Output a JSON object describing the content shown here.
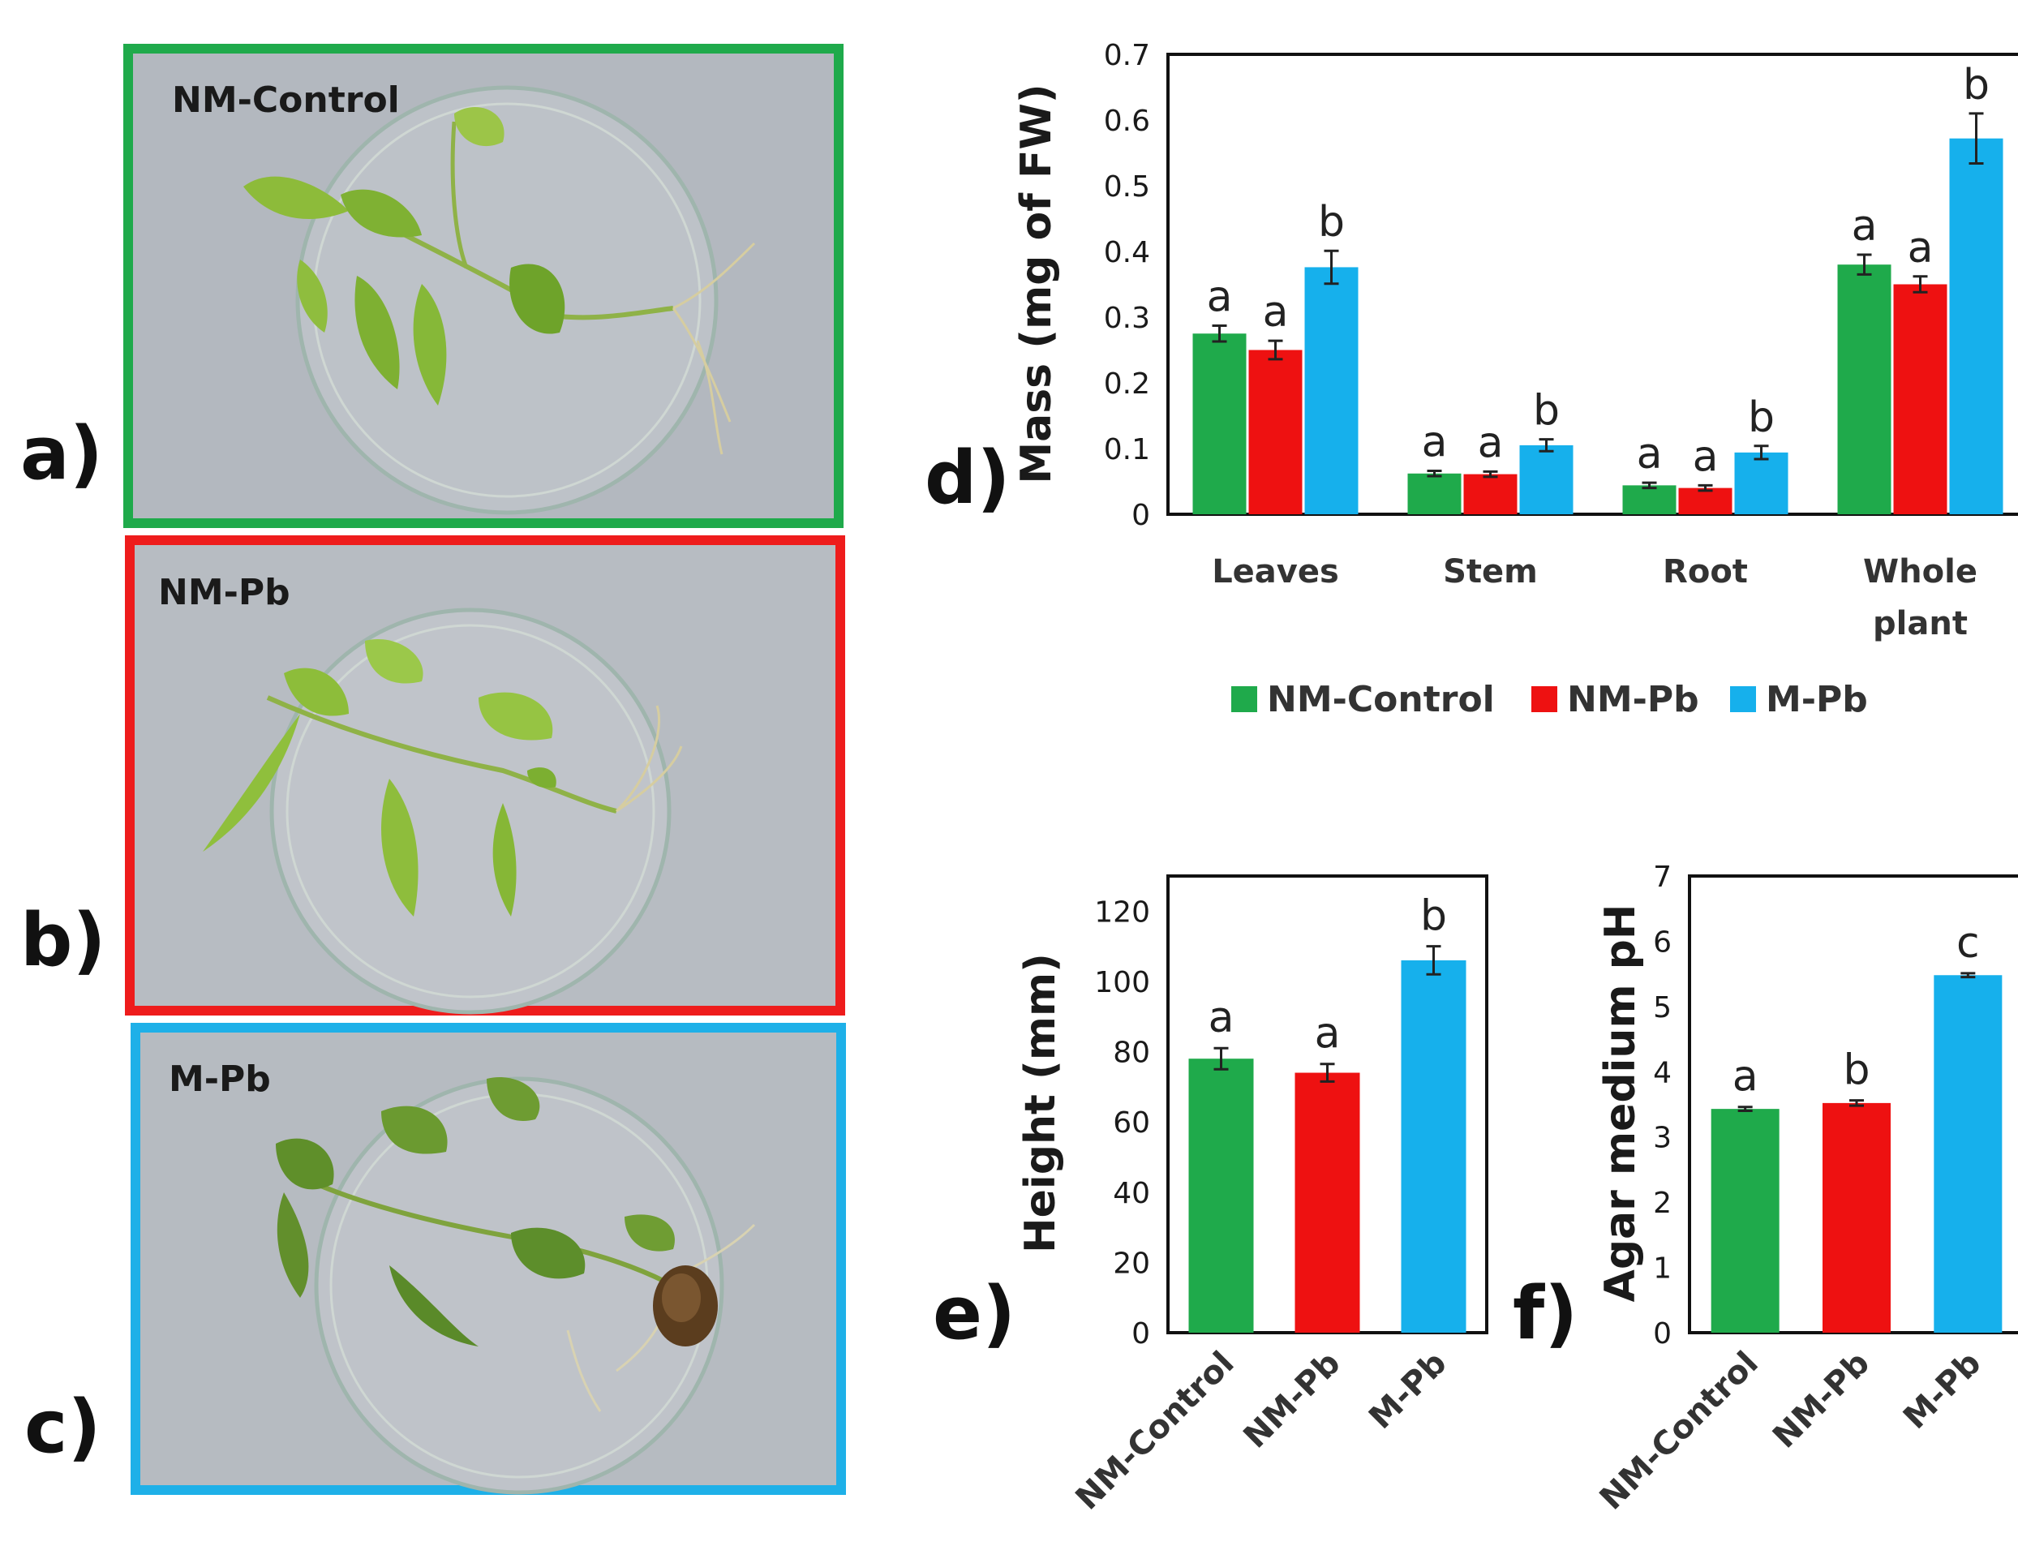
{
  "photos": [
    {
      "panel": "a)",
      "label": "NM-Control",
      "border_color": "#1faa4b"
    },
    {
      "panel": "b)",
      "label": "NM-Pb",
      "border_color": "#ee1c1c"
    },
    {
      "panel": "c)",
      "label": "M-Pb",
      "border_color": "#1eb0e8"
    }
  ],
  "colors": {
    "NM-Control": "#1faa4b",
    "NM-Pb": "#ee1111",
    "M-Pb": "#16b0ec"
  },
  "chart_data": [
    {
      "panel": "d)",
      "type": "bar",
      "ylabel": "Mass (mg of FW)",
      "ylim": [
        0,
        0.7
      ],
      "yticks": [
        "0",
        "0.1",
        "0.2",
        "0.3",
        "0.4",
        "0.5",
        "0.6",
        "0.7"
      ],
      "categories": [
        [
          "Leaves"
        ],
        [
          "Stem"
        ],
        [
          "Root"
        ],
        [
          "Whole",
          "plant"
        ]
      ],
      "series": [
        {
          "name": "NM-Control",
          "values": [
            0.275,
            0.062,
            0.044,
            0.38
          ],
          "errors": [
            0.012,
            0.004,
            0.004,
            0.015
          ],
          "sig": [
            "a",
            "a",
            "a",
            "a"
          ]
        },
        {
          "name": "NM-Pb",
          "values": [
            0.25,
            0.061,
            0.04,
            0.35
          ],
          "errors": [
            0.014,
            0.004,
            0.004,
            0.012
          ],
          "sig": [
            "a",
            "a",
            "a",
            "a"
          ]
        },
        {
          "name": "M-Pb",
          "values": [
            0.376,
            0.105,
            0.094,
            0.572
          ],
          "errors": [
            0.025,
            0.009,
            0.01,
            0.038
          ],
          "sig": [
            "b",
            "b",
            "b",
            "b"
          ]
        }
      ],
      "legend": [
        "NM-Control",
        "NM-Pb",
        "M-Pb"
      ]
    },
    {
      "panel": "e)",
      "type": "bar",
      "ylabel": "Height (mm)",
      "ylim": [
        0,
        130
      ],
      "yticks": [
        "0",
        "20",
        "40",
        "60",
        "80",
        "100",
        "120"
      ],
      "categories": [
        "NM-Control",
        "NM-Pb",
        "M-Pb"
      ],
      "values": [
        78,
        74,
        106
      ],
      "errors": [
        3,
        2.5,
        4
      ],
      "sig": [
        "a",
        "a",
        "b"
      ]
    },
    {
      "panel": "f)",
      "type": "bar",
      "ylabel": "Agar medium pH",
      "ylim": [
        0,
        7
      ],
      "yticks": [
        "0",
        "1",
        "2",
        "3",
        "4",
        "5",
        "6",
        "7"
      ],
      "categories": [
        "NM-Control",
        "NM-Pb",
        "M-Pb"
      ],
      "values": [
        3.43,
        3.52,
        5.48
      ],
      "errors": [
        0.03,
        0.04,
        0.03
      ],
      "sig": [
        "a",
        "b",
        "c"
      ]
    }
  ]
}
